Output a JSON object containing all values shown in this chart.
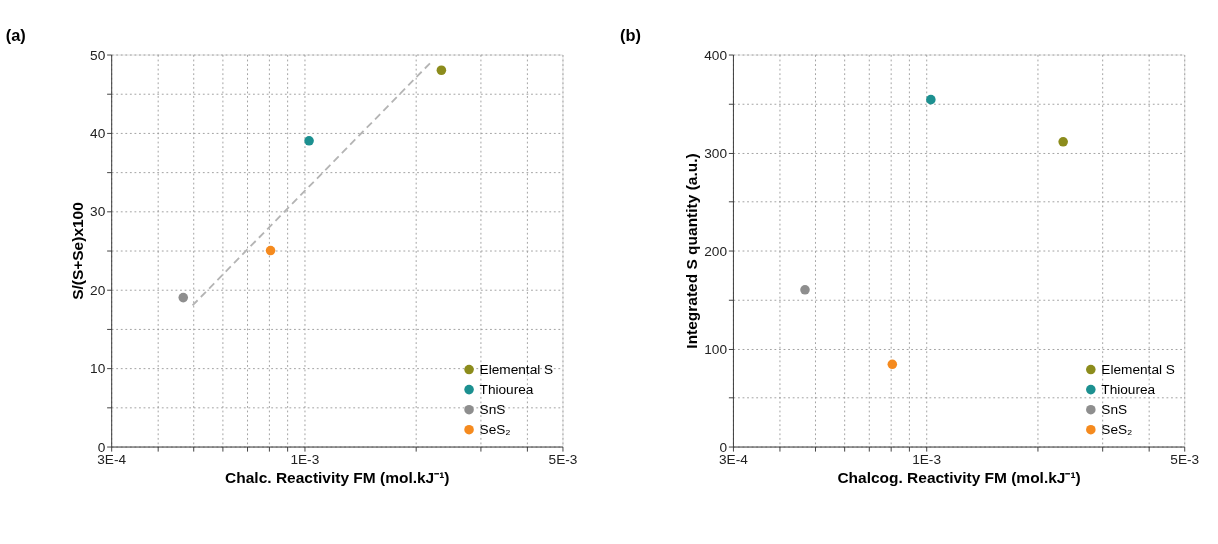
{
  "chart_data": [
    {
      "type": "scatter",
      "title": "(a)",
      "xlabel": "Chalc. Reactivity FM (mol.kJ⁻¹)",
      "ylabel": "S/(S+Se)x100",
      "log": "x",
      "grid": true,
      "legend": "bottom right",
      "marker": "circle",
      "xlim": [
        0.0003,
        0.005
      ],
      "xticks": [
        {
          "value": 0.0003,
          "label": "3E-4"
        },
        {
          "value": 0.0004,
          "label": null
        },
        {
          "value": 0.0005,
          "label": null
        },
        {
          "value": 0.0006,
          "label": null
        },
        {
          "value": 0.0007,
          "label": null
        },
        {
          "value": 0.0008,
          "label": null
        },
        {
          "value": 0.0009,
          "label": null
        },
        {
          "value": 0.001,
          "label": "1E-3"
        },
        {
          "value": 0.002,
          "label": null
        },
        {
          "value": 0.003,
          "label": null
        },
        {
          "value": 0.004,
          "label": null
        },
        {
          "value": 0.005,
          "label": "5E-3"
        }
      ],
      "ylim": [
        0,
        50
      ],
      "yticks": [
        0,
        {
          "value": 5,
          "label": null
        },
        10,
        {
          "value": 15,
          "label": null
        },
        20,
        {
          "value": 25,
          "label": null
        },
        30,
        {
          "value": 35,
          "label": null
        },
        40,
        {
          "value": 45,
          "label": null
        },
        50
      ],
      "series": [
        {
          "name": "Elemental S",
          "color": "#8c8c1c",
          "x": [
            0.00235
          ],
          "values": [
            48
          ]
        },
        {
          "name": "Thiourea",
          "color": "#1c9090",
          "x": [
            0.00103
          ],
          "values": [
            39
          ]
        },
        {
          "name": "SnS",
          "color": "#8e8e8e",
          "x": [
            0.00047
          ],
          "values": [
            19
          ]
        },
        {
          "name": "SeS₂",
          "color": "#f58a1e",
          "x": [
            0.00081
          ],
          "values": [
            25
          ]
        },
        {
          "type": "line",
          "color": "#b4b4b4",
          "line_style": "dashed",
          "marker": "none",
          "x": [
            0.000498,
            0.0022
          ],
          "values": [
            18,
            49
          ]
        }
      ]
    },
    {
      "type": "scatter",
      "title": "(b)",
      "xlabel": "Chalcog. Reactivity FM (mol.kJ⁻¹)",
      "ylabel": "Integrated S quantity (a.u.)",
      "log": "x",
      "grid": true,
      "legend": "bottom right",
      "marker": "circle",
      "xlim": [
        0.0003,
        0.005
      ],
      "xticks": [
        {
          "value": 0.0003,
          "label": "3E-4"
        },
        {
          "value": 0.0004,
          "label": null
        },
        {
          "value": 0.0005,
          "label": null
        },
        {
          "value": 0.0006,
          "label": null
        },
        {
          "value": 0.0007,
          "label": null
        },
        {
          "value": 0.0008,
          "label": null
        },
        {
          "value": 0.0009,
          "label": null
        },
        {
          "value": 0.001,
          "label": "1E-3"
        },
        {
          "value": 0.002,
          "label": null
        },
        {
          "value": 0.003,
          "label": null
        },
        {
          "value": 0.004,
          "label": null
        },
        {
          "value": 0.005,
          "label": "5E-3"
        }
      ],
      "ylim": [
        0,
        400
      ],
      "yticks": [
        0,
        {
          "value": 50,
          "label": null
        },
        100,
        {
          "value": 150,
          "label": null
        },
        200,
        {
          "value": 250,
          "label": null
        },
        300,
        {
          "value": 350,
          "label": null
        },
        400
      ],
      "series": [
        {
          "name": "Elemental S",
          "color": "#8c8c1c",
          "x": [
            0.00235
          ],
          "values": [
            311
          ]
        },
        {
          "name": "Thiourea",
          "color": "#1c9090",
          "x": [
            0.00103
          ],
          "values": [
            354
          ]
        },
        {
          "name": "SnS",
          "color": "#8e8e8e",
          "x": [
            0.00047
          ],
          "values": [
            160
          ]
        },
        {
          "name": "SeS₂",
          "color": "#f58a1e",
          "x": [
            0.00081
          ],
          "values": [
            84
          ]
        }
      ]
    }
  ]
}
